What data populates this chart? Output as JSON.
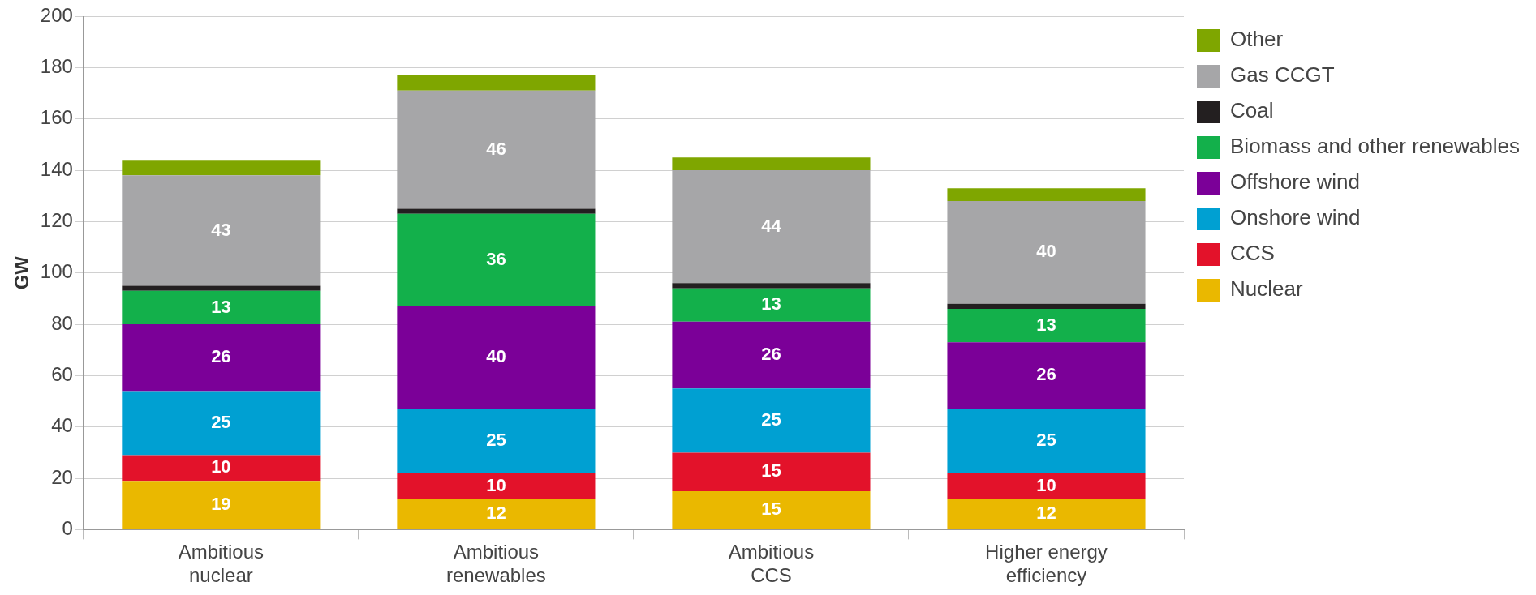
{
  "chart_data": {
    "type": "bar",
    "stacked": true,
    "ylabel": "GW",
    "categories": [
      "Ambitious nuclear",
      "Ambitious renewables",
      "Ambitious CCS",
      "Higher energy efficiency"
    ],
    "ylim": [
      0,
      200
    ],
    "yticks": [
      0,
      20,
      40,
      60,
      80,
      100,
      120,
      140,
      160,
      180,
      200
    ],
    "grid": "y",
    "legend": "right",
    "series": [
      {
        "name": "Nuclear",
        "color": "#eab800",
        "values": [
          19,
          12,
          15,
          12
        ],
        "value_labels": [
          "19",
          "12",
          "15",
          "12"
        ]
      },
      {
        "name": "CCS",
        "color": "#e3122a",
        "values": [
          10,
          10,
          15,
          10
        ],
        "value_labels": [
          "10",
          "10",
          "15",
          "10"
        ]
      },
      {
        "name": "Onshore wind",
        "color": "#00a0d2",
        "values": [
          25,
          25,
          25,
          25
        ],
        "value_labels": [
          "25",
          "25",
          "25",
          "25"
        ]
      },
      {
        "name": "Offshore wind",
        "color": "#7b0098",
        "values": [
          26,
          40,
          26,
          26
        ],
        "value_labels": [
          "26",
          "40",
          "26",
          "26"
        ]
      },
      {
        "name": "Biomass and other renewables",
        "color": "#13b04b",
        "values": [
          13,
          36,
          13,
          13
        ],
        "value_labels": [
          "13",
          "36",
          "13",
          "13"
        ]
      },
      {
        "name": "Coal",
        "color": "#231f20",
        "values": [
          2,
          2,
          2,
          2
        ]
      },
      {
        "name": "Gas CCGT",
        "color": "#a6a6a8",
        "values": [
          43,
          46,
          44,
          40
        ],
        "value_labels": [
          "43",
          "46",
          "44",
          "40"
        ]
      },
      {
        "name": "Other",
        "color": "#7fa600",
        "values": [
          6,
          6,
          5,
          5
        ]
      }
    ]
  }
}
